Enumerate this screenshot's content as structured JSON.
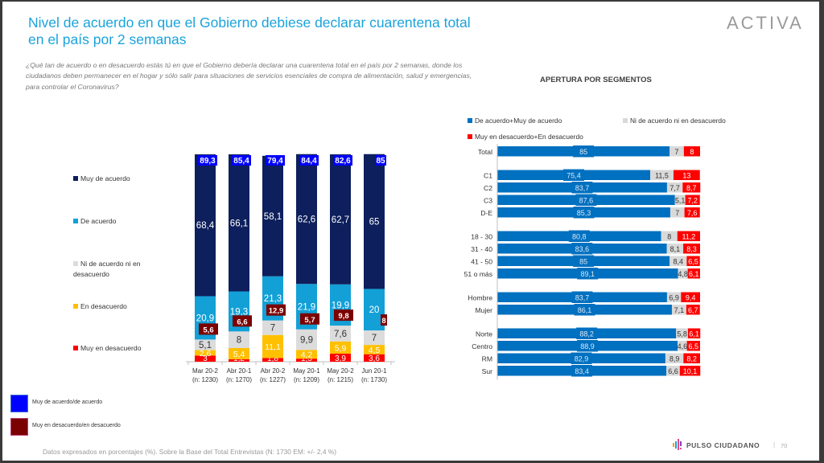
{
  "header": {
    "title": "Nivel de acuerdo en que el Gobierno debiese declarar cuarentena total en el país por 2 semanas",
    "question": "¿Qué tan de acuerdo o en desacuerdo estás tú en que el Gobierno debería declarar una cuarentena total en el país por 2 semanas, donde los ciudadanos deben permanecer en el hogar y sólo salir para situaciones de servicios esenciales de compra de alimentación, salud y emergencias, para controlar el Coronavirus?",
    "logo": "ACTIVA"
  },
  "footer": {
    "note": "Datos expresados en porcentajes (%). Sobre la Base del Total Entrevistas (N: 1730  EM: +/- 2,4 %)",
    "brand": "PULSO CIUDADANO",
    "separator": "|",
    "page": "70"
  },
  "colors": {
    "muy_de_acuerdo": "#0d1f5c",
    "de_acuerdo": "#12a0d7",
    "ni": "#dcdcdc",
    "en_desacuerdo": "#ffc000",
    "muy_en_desacuerdo": "#ff0000",
    "total_acuerdo_badge": "#0000ff",
    "total_desacuerdo_badge": "#7b0000",
    "seg_acuerdo": "#0070c0",
    "seg_ni": "#d9d9d9",
    "seg_desacuerdo": "#ff0000"
  },
  "chart_data": [
    {
      "type": "bar",
      "stacked": true,
      "orientation": "vertical",
      "title": "",
      "categories": [
        "Mar 20-2",
        "Abr 20-1",
        "Abr 20-2",
        "May 20-1",
        "May 20-2",
        "Jun 20-1"
      ],
      "sublabels": [
        "(n: 1230)",
        "(n: 1270)",
        "(n: 1227)",
        "(n: 1209)",
        "(n: 1215)",
        "(n: 1730)"
      ],
      "series": [
        {
          "name": "Muy en desacuerdo",
          "values": [
            3,
            1.2,
            1.8,
            1.5,
            3.9,
            3.6
          ],
          "labels": [
            "3",
            "1,2",
            "1,8",
            "1,5",
            "3,9",
            "3,6"
          ]
        },
        {
          "name": "En desacuerdo",
          "values": [
            2.6,
            5.4,
            11.1,
            4.2,
            5.9,
            4.5
          ],
          "labels": [
            "2,6",
            "5,4",
            "11,1",
            "4,2",
            "5,9",
            "4,5"
          ]
        },
        {
          "name": "Ni de acuerdo ni en desacuerdo",
          "values": [
            5.1,
            8,
            7,
            9.9,
            7.6,
            7
          ],
          "labels": [
            "5,1",
            "8",
            "7",
            "9,9",
            "7,6",
            "7"
          ]
        },
        {
          "name": "De acuerdo",
          "values": [
            20.9,
            19.3,
            21.3,
            21.9,
            19.9,
            20
          ],
          "labels": [
            "20,9",
            "19,3",
            "21,3",
            "21,9",
            "19,9",
            "20"
          ]
        },
        {
          "name": "Muy de acuerdo",
          "values": [
            68.4,
            66.1,
            58.1,
            62.6,
            62.7,
            65
          ],
          "labels": [
            "68,4",
            "66,1",
            "58,1",
            "62,6",
            "62,7",
            "65"
          ]
        }
      ],
      "totals": [
        {
          "name": "Muy de acuerdo/de acuerdo",
          "values": [
            89.3,
            85.4,
            79.4,
            84.4,
            82.6,
            85
          ],
          "labels": [
            "89,3",
            "85,4",
            "79,4",
            "84,4",
            "82,6",
            "85"
          ]
        },
        {
          "name": "Muy en desacuerdo/en desacuerdo",
          "values": [
            5.6,
            6.6,
            12.9,
            5.7,
            9.8,
            8
          ],
          "labels": [
            "5,6",
            "6,6",
            "12,9",
            "5,7",
            "9,8",
            "8"
          ]
        }
      ],
      "legend": [
        "Muy de acuerdo",
        "De acuerdo",
        "Ni de acuerdo ni en desacuerdo",
        "En desacuerdo",
        "Muy en desacuerdo"
      ],
      "legend_position": "left",
      "ylim": [
        0,
        100
      ]
    },
    {
      "type": "bar",
      "stacked": true,
      "orientation": "horizontal",
      "title": "APERTURA POR SEGMENTOS",
      "legend": [
        "De acuerdo+Muy de acuerdo",
        "Ni de acuerdo ni en desacuerdo",
        "Muy en desacuerdo+En desacuerdo"
      ],
      "legend_position": "top",
      "groups": [
        {
          "rows": [
            {
              "label": "Total",
              "values": [
                85,
                7,
                8
              ],
              "labels": [
                "85",
                "7",
                "8"
              ]
            }
          ]
        },
        {
          "rows": [
            {
              "label": "C1",
              "values": [
                75.4,
                11.5,
                13
              ],
              "labels": [
                "75,4",
                "11,5",
                "13"
              ]
            },
            {
              "label": "C2",
              "values": [
                83.7,
                7.7,
                8.7
              ],
              "labels": [
                "83,7",
                "7,7",
                "8,7"
              ]
            },
            {
              "label": "C3",
              "values": [
                87.6,
                5.1,
                7.2
              ],
              "labels": [
                "87,6",
                "5,1",
                "7,2"
              ]
            },
            {
              "label": "D-E",
              "values": [
                85.3,
                7,
                7.6
              ],
              "labels": [
                "85,3",
                "7",
                "7,6"
              ]
            }
          ]
        },
        {
          "rows": [
            {
              "label": "18 - 30",
              "values": [
                80.8,
                8,
                11.2
              ],
              "labels": [
                "80,8",
                "8",
                "11,2"
              ]
            },
            {
              "label": "31 - 40",
              "values": [
                83.6,
                8.1,
                8.3
              ],
              "labels": [
                "83,6",
                "8,1",
                "8,3"
              ]
            },
            {
              "label": "41 - 50",
              "values": [
                85,
                8.4,
                6.5
              ],
              "labels": [
                "85",
                "8,4",
                "6,5"
              ]
            },
            {
              "label": "51 o más",
              "values": [
                89.1,
                4.8,
                6.1
              ],
              "labels": [
                "89,1",
                "4,8",
                "6,1"
              ]
            }
          ]
        },
        {
          "rows": [
            {
              "label": "Hombre",
              "values": [
                83.7,
                6.9,
                9.4
              ],
              "labels": [
                "83,7",
                "6,9",
                "9,4"
              ]
            },
            {
              "label": "Mujer",
              "values": [
                86.1,
                7.1,
                6.7
              ],
              "labels": [
                "86,1",
                "7,1",
                "6,7"
              ]
            }
          ]
        },
        {
          "rows": [
            {
              "label": "Norte",
              "values": [
                88.2,
                5.8,
                6.1
              ],
              "labels": [
                "88,2",
                "5,8",
                "6,1"
              ]
            },
            {
              "label": "Centro",
              "values": [
                88.9,
                4.6,
                6.5
              ],
              "labels": [
                "88,9",
                "4,6",
                "6,5"
              ]
            },
            {
              "label": "RM",
              "values": [
                82.9,
                8.9,
                8.2
              ],
              "labels": [
                "82,9",
                "8,9",
                "8,2"
              ]
            },
            {
              "label": "Sur",
              "values": [
                83.4,
                6.6,
                10.1
              ],
              "labels": [
                "83,4",
                "6,6",
                "10,1"
              ]
            }
          ]
        }
      ],
      "xlim": [
        0,
        100
      ]
    }
  ]
}
